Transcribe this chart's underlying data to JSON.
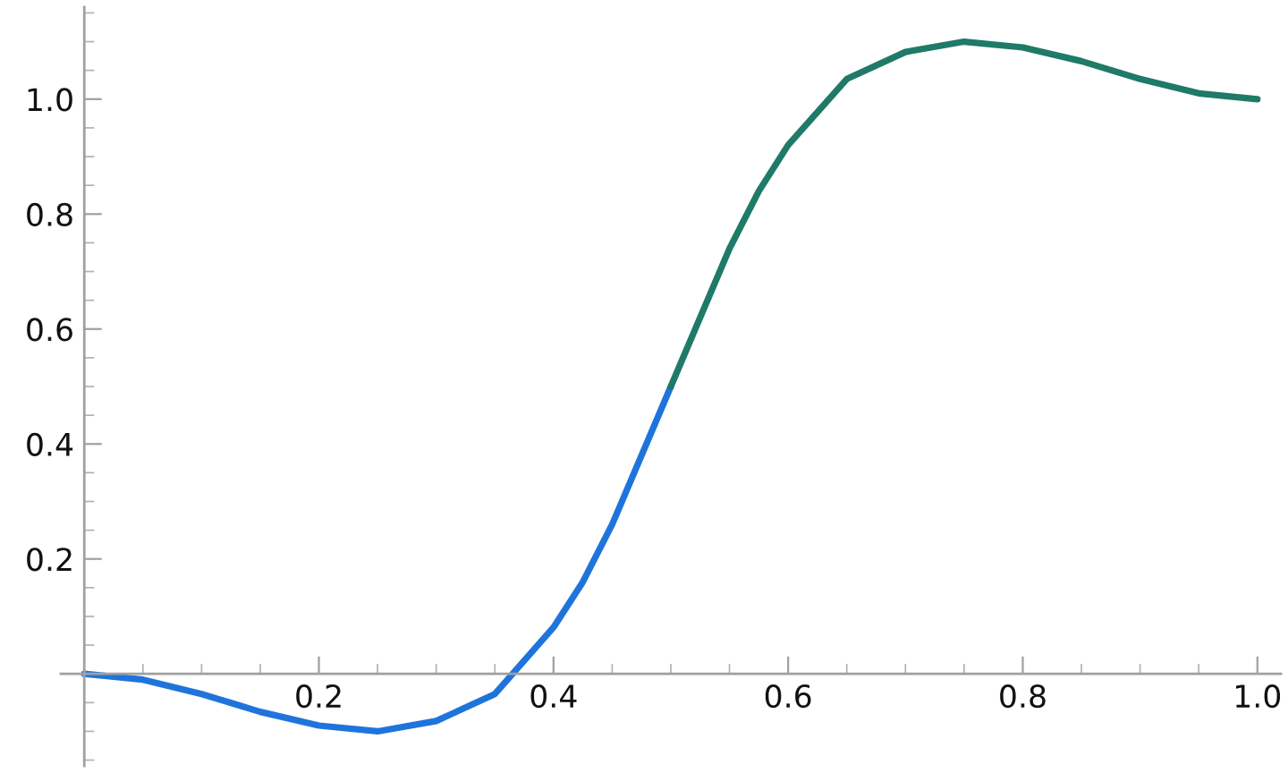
{
  "chart_data": {
    "type": "line",
    "series": [
      {
        "color": "#1f74dc",
        "x": [
          0,
          0.05,
          0.1,
          0.15,
          0.2,
          0.25,
          0.3,
          0.35,
          0.4,
          0.425,
          0.45,
          0.475,
          0.5
        ],
        "values": [
          0,
          -0.01,
          -0.035,
          -0.066,
          -0.09,
          -0.1,
          -0.082,
          -0.035,
          0.081,
          0.16,
          0.26,
          0.38,
          0.5
        ]
      },
      {
        "color": "#1f7a68",
        "x": [
          0.5,
          0.525,
          0.55,
          0.575,
          0.6,
          0.65,
          0.7,
          0.75,
          0.8,
          0.85,
          0.9,
          0.95,
          1.0
        ],
        "values": [
          0.5,
          0.62,
          0.74,
          0.84,
          0.92,
          1.035,
          1.082,
          1.1,
          1.09,
          1.066,
          1.035,
          1.01,
          1.0
        ]
      }
    ],
    "xlim": [
      -0.02,
      1.02
    ],
    "ylim": [
      -0.16,
      1.16
    ],
    "xticks": [
      {
        "value": 0.05,
        "label": null
      },
      {
        "value": 0.1,
        "label": null
      },
      {
        "value": 0.15,
        "label": null
      },
      0.2,
      {
        "value": 0.25,
        "label": null
      },
      {
        "value": 0.3,
        "label": null
      },
      {
        "value": 0.35,
        "label": null
      },
      0.4,
      {
        "value": 0.45,
        "label": null
      },
      {
        "value": 0.5,
        "label": null
      },
      {
        "value": 0.55,
        "label": null
      },
      0.6,
      {
        "value": 0.65,
        "label": null
      },
      {
        "value": 0.7,
        "label": null
      },
      {
        "value": 0.75,
        "label": null
      },
      0.8,
      {
        "value": 0.85,
        "label": null
      },
      {
        "value": 0.9,
        "label": null
      },
      {
        "value": 0.95,
        "label": null
      },
      {
        "value": 1.0,
        "label": "1.0"
      }
    ],
    "yticks": [
      {
        "value": -0.15,
        "label": null
      },
      {
        "value": -0.1,
        "label": null
      },
      {
        "value": -0.05,
        "label": null
      },
      {
        "value": 0.05,
        "label": null
      },
      {
        "value": 0.1,
        "label": null
      },
      {
        "value": 0.15,
        "label": null
      },
      0.2,
      {
        "value": 0.25,
        "label": null
      },
      {
        "value": 0.3,
        "label": null
      },
      {
        "value": 0.35,
        "label": null
      },
      0.4,
      {
        "value": 0.45,
        "label": null
      },
      {
        "value": 0.5,
        "label": null
      },
      {
        "value": 0.55,
        "label": null
      },
      0.6,
      {
        "value": 0.65,
        "label": null
      },
      {
        "value": 0.7,
        "label": null
      },
      {
        "value": 0.75,
        "label": null
      },
      0.8,
      {
        "value": 0.85,
        "label": null
      },
      {
        "value": 0.9,
        "label": null
      },
      {
        "value": 0.95,
        "label": null
      },
      {
        "value": 1.0,
        "label": "1.0"
      },
      {
        "value": 1.05,
        "label": null
      },
      {
        "value": 1.1,
        "label": null
      },
      {
        "value": 1.15,
        "label": null
      }
    ],
    "grid": false,
    "legend": false
  }
}
